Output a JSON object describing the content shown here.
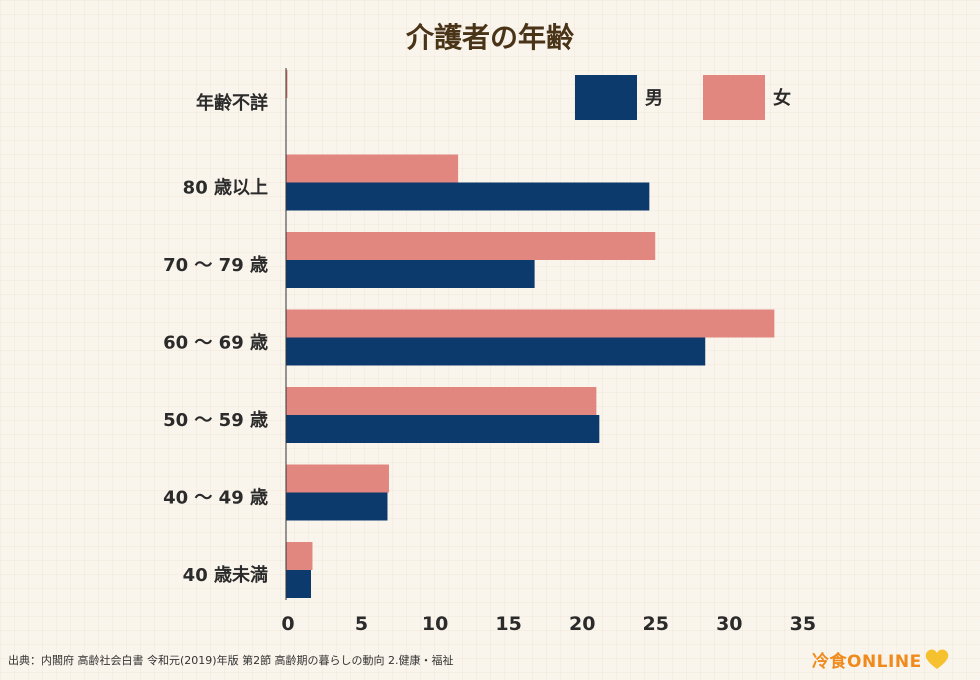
{
  "chart_data": {
    "type": "bar",
    "orientation": "horizontal",
    "title": "介護者の年齢",
    "categories": [
      "年齢不詳",
      "80 歳以上",
      "70 ～ 79 歳",
      "60 ～ 69 歳",
      "50 ～ 59 歳",
      "40 ～ 49 歳",
      "40 歳未満"
    ],
    "series": [
      {
        "name": "男",
        "color": "#0c3a6c",
        "values": [
          0,
          24.7,
          16.9,
          28.5,
          21.3,
          6.9,
          1.7
        ]
      },
      {
        "name": "女",
        "color": "#e2877f",
        "values": [
          0.1,
          11.7,
          25.1,
          33.2,
          21.1,
          7.0,
          1.8
        ]
      }
    ],
    "xlim": [
      0,
      35
    ],
    "xticks": [
      0,
      5,
      10,
      15,
      20,
      25,
      30,
      35
    ],
    "xlabel": "",
    "ylabel": "",
    "grid": false,
    "legend_position": "top-right"
  },
  "footer": {
    "source": "出典：内閣府 高齢社会白書 令和元(2019)年版 第2節 高齢期の暮らしの動向 2.健康・福祉",
    "logo_text": "冷食ONLINE",
    "logo_badge": "ONLINE"
  }
}
